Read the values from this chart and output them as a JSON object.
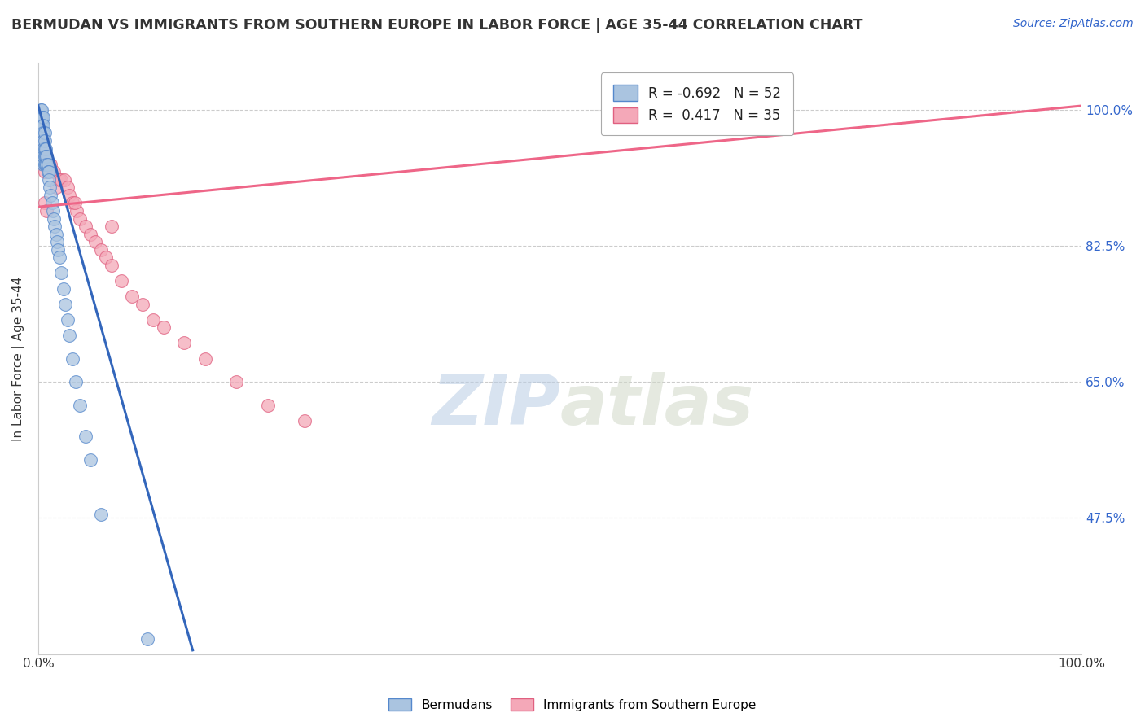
{
  "title": "BERMUDAN VS IMMIGRANTS FROM SOUTHERN EUROPE IN LABOR FORCE | AGE 35-44 CORRELATION CHART",
  "source_text": "Source: ZipAtlas.com",
  "ylabel": "In Labor Force | Age 35-44",
  "xlim": [
    0.0,
    1.0
  ],
  "ylim": [
    0.3,
    1.06
  ],
  "yticks": [
    0.475,
    0.65,
    0.825,
    1.0
  ],
  "ytick_labels": [
    "47.5%",
    "65.0%",
    "82.5%",
    "100.0%"
  ],
  "xticks": [
    0.0,
    1.0
  ],
  "xtick_labels": [
    "0.0%",
    "100.0%"
  ],
  "background_color": "#ffffff",
  "grid_color": "#cccccc",
  "blue_color": "#aac4e0",
  "pink_color": "#f4a8b8",
  "blue_edge_color": "#5588cc",
  "pink_edge_color": "#e06080",
  "blue_line_color": "#3366bb",
  "pink_line_color": "#ee6688",
  "legend_r_blue": "-0.692",
  "legend_n_blue": "52",
  "legend_r_pink": "0.417",
  "legend_n_pink": "35",
  "watermark_zip": "ZIP",
  "watermark_atlas": "atlas",
  "blue_scatter_x": [
    0.002,
    0.002,
    0.003,
    0.003,
    0.003,
    0.004,
    0.004,
    0.004,
    0.004,
    0.005,
    0.005,
    0.005,
    0.005,
    0.005,
    0.005,
    0.005,
    0.006,
    0.006,
    0.006,
    0.006,
    0.006,
    0.007,
    0.007,
    0.007,
    0.008,
    0.008,
    0.009,
    0.009,
    0.01,
    0.01,
    0.011,
    0.012,
    0.013,
    0.014,
    0.015,
    0.016,
    0.017,
    0.018,
    0.019,
    0.02,
    0.022,
    0.024,
    0.026,
    0.028,
    0.03,
    0.033,
    0.036,
    0.04,
    0.045,
    0.05,
    0.06,
    0.105
  ],
  "blue_scatter_y": [
    1.0,
    0.99,
    1.0,
    0.99,
    0.98,
    0.99,
    0.98,
    0.97,
    0.96,
    0.99,
    0.98,
    0.97,
    0.96,
    0.95,
    0.94,
    0.93,
    0.97,
    0.96,
    0.95,
    0.94,
    0.93,
    0.95,
    0.94,
    0.93,
    0.94,
    0.93,
    0.93,
    0.92,
    0.92,
    0.91,
    0.9,
    0.89,
    0.88,
    0.87,
    0.86,
    0.85,
    0.84,
    0.83,
    0.82,
    0.81,
    0.79,
    0.77,
    0.75,
    0.73,
    0.71,
    0.68,
    0.65,
    0.62,
    0.58,
    0.55,
    0.48,
    0.32
  ],
  "pink_scatter_x": [
    0.005,
    0.006,
    0.008,
    0.01,
    0.012,
    0.015,
    0.017,
    0.02,
    0.022,
    0.025,
    0.028,
    0.03,
    0.033,
    0.037,
    0.04,
    0.045,
    0.05,
    0.055,
    0.06,
    0.065,
    0.07,
    0.08,
    0.09,
    0.1,
    0.11,
    0.12,
    0.14,
    0.16,
    0.19,
    0.22,
    0.255,
    0.006,
    0.008,
    0.035,
    0.07
  ],
  "pink_scatter_y": [
    0.96,
    0.92,
    0.94,
    0.93,
    0.93,
    0.92,
    0.9,
    0.91,
    0.91,
    0.91,
    0.9,
    0.89,
    0.88,
    0.87,
    0.86,
    0.85,
    0.84,
    0.83,
    0.82,
    0.81,
    0.8,
    0.78,
    0.76,
    0.75,
    0.73,
    0.72,
    0.7,
    0.68,
    0.65,
    0.62,
    0.6,
    0.88,
    0.87,
    0.88,
    0.85
  ],
  "blue_line_x": [
    0.0,
    0.148
  ],
  "blue_line_y": [
    1.005,
    0.305
  ],
  "pink_line_x": [
    0.0,
    1.0
  ],
  "pink_line_y": [
    0.875,
    1.005
  ]
}
